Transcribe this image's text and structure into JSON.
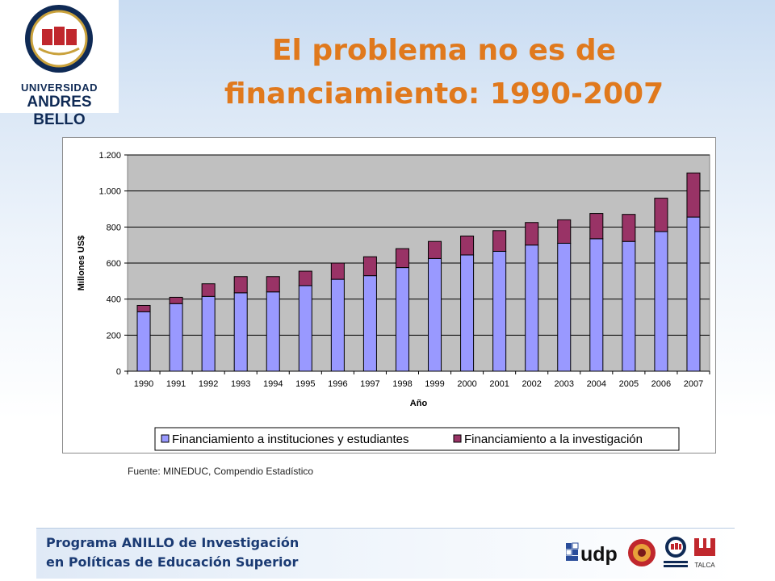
{
  "header": {
    "logo_line1": "UNIVERSIDAD",
    "logo_line2": "ANDRES BELLO",
    "logo_ring_text": "UNIVERSIDAD ANDRES BELLO",
    "logo_motto": "TRADICION Y MODERNIDAD",
    "title_line1": "El problema no es de",
    "title_line2": "financiamiento: 1990-2007"
  },
  "chart_data": {
    "type": "bar",
    "stacked": true,
    "title": "",
    "xlabel": "Año",
    "ylabel": "Millones US$",
    "ylim": [
      0,
      1200
    ],
    "yticks": [
      0,
      200,
      400,
      600,
      800,
      1000,
      1200
    ],
    "ytick_labels": [
      "0",
      "200",
      "400",
      "600",
      "800",
      "1.000",
      "1.200"
    ],
    "grid": true,
    "legend_position": "bottom",
    "categories": [
      "1990",
      "1991",
      "1992",
      "1993",
      "1994",
      "1995",
      "1996",
      "1997",
      "1998",
      "1999",
      "2000",
      "2001",
      "2002",
      "2003",
      "2004",
      "2005",
      "2006",
      "2007"
    ],
    "series": [
      {
        "name": "Financiamiento a instituciones y estudiantes",
        "color": "#9999ff",
        "values": [
          330,
          375,
          415,
          435,
          440,
          475,
          510,
          530,
          575,
          625,
          645,
          665,
          700,
          710,
          735,
          720,
          775,
          855
        ]
      },
      {
        "name": "Financiamiento a la investigación",
        "color": "#993366",
        "values": [
          35,
          35,
          70,
          90,
          85,
          80,
          90,
          105,
          105,
          95,
          105,
          115,
          125,
          130,
          140,
          150,
          185,
          245
        ]
      }
    ],
    "plot_background": "#c0c0c0"
  },
  "source_note": "Fuente: MINEDUC, Compendio Estadístico",
  "footer": {
    "line1": "Programa ANILLO de Investigación",
    "line2": "en Políticas de Educación Superior",
    "udp_label": "udp",
    "talca_label": "TALCA"
  }
}
